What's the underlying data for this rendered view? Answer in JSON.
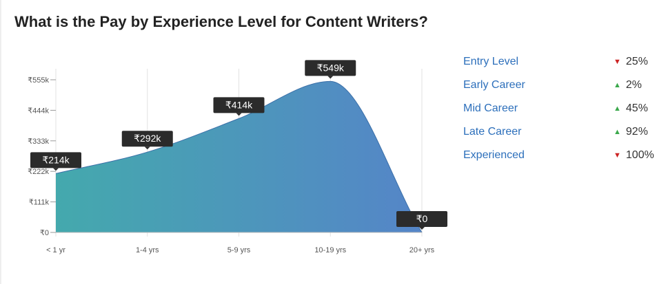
{
  "title": "What is the Pay by Experience Level for Content Writers?",
  "colors": {
    "gradient_start": "#44a9ad",
    "gradient_end": "#5585c8",
    "stroke": "#3b6fa8",
    "tooltip_bg": "#2b2b2b",
    "legend_link": "#2c6fbb",
    "up": "#3aa84b",
    "down": "#cc2222"
  },
  "chart_data": {
    "type": "area",
    "categories": [
      "< 1 yr",
      "1-4 yrs",
      "5-9 yrs",
      "10-19 yrs",
      "20+ yrs"
    ],
    "values": [
      214,
      292,
      414,
      549,
      0
    ],
    "value_labels": [
      "₹214k",
      "₹292k",
      "₹414k",
      "₹549k",
      "₹0"
    ],
    "y_ticks": [
      0,
      111,
      222,
      333,
      444,
      555
    ],
    "y_tick_labels": [
      "₹0",
      "₹111k",
      "₹222k",
      "₹333k",
      "₹444k",
      "₹555k"
    ],
    "ylim": [
      0,
      600
    ],
    "grid": "vertical",
    "title": "",
    "xlabel": "",
    "ylabel": ""
  },
  "legend": [
    {
      "label": "Entry Level",
      "direction": "down",
      "icon": "triangle-down-icon",
      "arrow": "▼",
      "change": "25%"
    },
    {
      "label": "Early Career",
      "direction": "up",
      "icon": "triangle-up-icon",
      "arrow": "▲",
      "change": "2%"
    },
    {
      "label": "Mid Career",
      "direction": "up",
      "icon": "triangle-up-icon",
      "arrow": "▲",
      "change": "45%"
    },
    {
      "label": "Late Career",
      "direction": "up",
      "icon": "triangle-up-icon",
      "arrow": "▲",
      "change": "92%"
    },
    {
      "label": "Experienced",
      "direction": "down",
      "icon": "triangle-down-icon",
      "arrow": "▼",
      "change": "100%"
    }
  ]
}
